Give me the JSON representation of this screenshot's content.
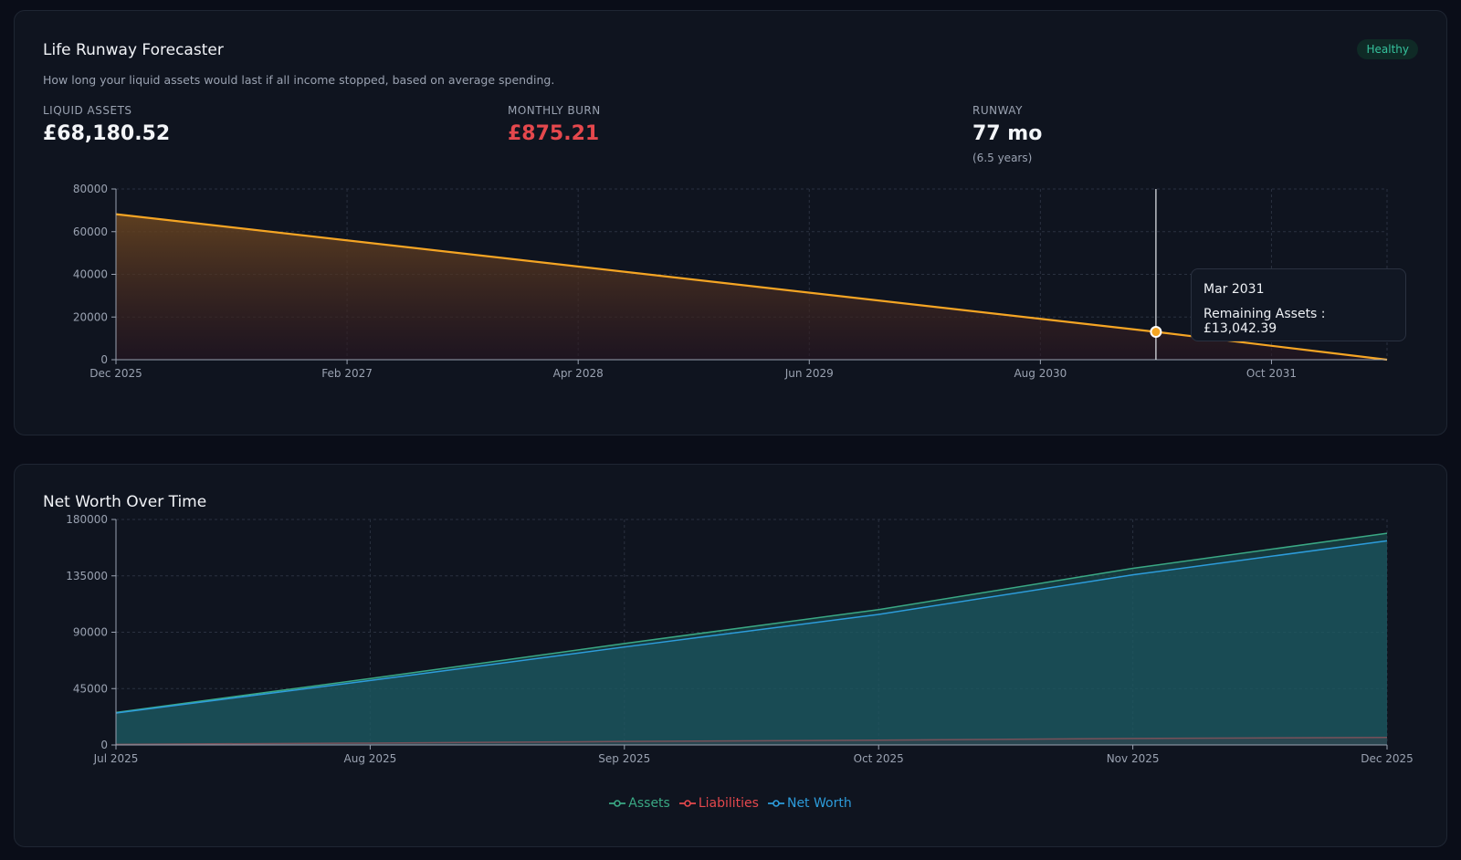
{
  "runway_card": {
    "title": "Life Runway Forecaster",
    "subtitle": "How long your liquid assets would last if all income stopped, based on average spending.",
    "badge": "Healthy",
    "stats": {
      "liquid_label": "LIQUID ASSETS",
      "liquid_value": "£68,180.52",
      "burn_label": "MONTHLY BURN",
      "burn_value": "£875.21",
      "runway_label": "RUNWAY",
      "runway_value": "77 mo",
      "runway_sub": "(6.5 years)"
    },
    "tooltip": {
      "title": "Mar 2031",
      "label": "Remaining Assets : £13,042.39"
    }
  },
  "networth_card": {
    "title": "Net Worth Over Time"
  },
  "colors": {
    "runway_line": "#f5a524",
    "assets": "#3aa884",
    "liabilities": "#e5484d",
    "networth": "#2d9cdb"
  },
  "chart_data": [
    {
      "type": "area",
      "x_type": "months",
      "x_range": [
        "Dec 2025",
        "May 2032"
      ],
      "x_ticks": [
        "Dec 2025",
        "Feb 2027",
        "Apr 2028",
        "Jun 2029",
        "Aug 2030",
        "Oct 2031"
      ],
      "y_ticks": [
        0,
        20000,
        40000,
        60000,
        80000
      ],
      "ylim": [
        0,
        80000
      ],
      "grid": true,
      "series": [
        {
          "x": [
            "Dec 2025",
            "Mar 2031",
            "May 2032"
          ],
          "values": [
            68180.52,
            13042.39,
            0
          ]
        }
      ],
      "highlight": {
        "x": "Mar 2031",
        "value": 13042.39
      }
    },
    {
      "type": "area",
      "categories": [
        "Jul 2025",
        "Aug 2025",
        "Sep 2025",
        "Oct 2025",
        "Nov 2025",
        "Dec 2025"
      ],
      "y_ticks": [
        0,
        45000,
        90000,
        135000,
        180000
      ],
      "ylim": [
        0,
        180000
      ],
      "grid": true,
      "legend_position": "bottom",
      "series": [
        {
          "name": "Assets",
          "values": [
            26000,
            53000,
            81000,
            108000,
            141000,
            169000
          ]
        },
        {
          "name": "Liabilities",
          "values": [
            500,
            1500,
            2800,
            3800,
            5200,
            6000
          ]
        },
        {
          "name": "Net Worth",
          "values": [
            25500,
            51500,
            78200,
            104200,
            135800,
            163000
          ]
        }
      ]
    }
  ]
}
